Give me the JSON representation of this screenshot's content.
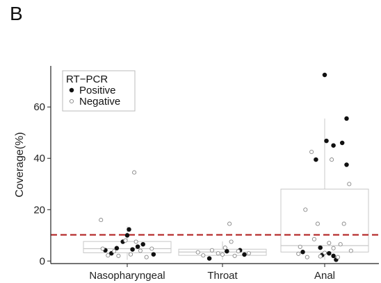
{
  "panel_label": "B",
  "chart_data": {
    "type": "scatter",
    "subtype": "box-jitter",
    "categories": [
      "Nasopharyngeal",
      "Throat",
      "Anal"
    ],
    "ylabel": "Coverage(%)",
    "xlabel": "",
    "ylim": [
      -1,
      76
    ],
    "yticks": [
      0,
      20,
      40,
      60
    ],
    "threshold": {
      "value": 10.2,
      "color": "#b22222",
      "style": "dashed"
    },
    "legend": {
      "title": "RT−PCR",
      "placement": "top-left",
      "entries": [
        {
          "label": "Positive",
          "marker": "filled"
        },
        {
          "label": "Negative",
          "marker": "open"
        }
      ]
    },
    "boxes": [
      {
        "category": "Nasopharyngeal",
        "q1": 3.2,
        "median": 4.8,
        "q3": 7.6,
        "whisker_low": 0.5,
        "whisker_high": 13.5
      },
      {
        "category": "Throat",
        "q1": 2.2,
        "median": 3.5,
        "q3": 4.6,
        "whisker_low": 0.5,
        "whisker_high": 7.6
      },
      {
        "category": "Anal",
        "q1": 3.5,
        "median": 6.0,
        "q3": 28.0,
        "whisker_low": 0.5,
        "whisker_high": 55.5
      }
    ],
    "series": [
      {
        "name": "Positive",
        "points": [
          {
            "category": "Nasopharyngeal",
            "offset": -0.25,
            "y": 4.2
          },
          {
            "category": "Nasopharyngeal",
            "offset": -0.18,
            "y": 3.0
          },
          {
            "category": "Nasopharyngeal",
            "offset": -0.12,
            "y": 5.0
          },
          {
            "category": "Nasopharyngeal",
            "offset": -0.05,
            "y": 7.5
          },
          {
            "category": "Nasopharyngeal",
            "offset": 0.0,
            "y": 10.0
          },
          {
            "category": "Nasopharyngeal",
            "offset": 0.02,
            "y": 12.3
          },
          {
            "category": "Nasopharyngeal",
            "offset": 0.06,
            "y": 4.5
          },
          {
            "category": "Nasopharyngeal",
            "offset": 0.12,
            "y": 5.6
          },
          {
            "category": "Nasopharyngeal",
            "offset": 0.18,
            "y": 6.5
          },
          {
            "category": "Nasopharyngeal",
            "offset": 0.3,
            "y": 2.6
          },
          {
            "category": "Throat",
            "offset": -0.15,
            "y": 1.0
          },
          {
            "category": "Throat",
            "offset": 0.05,
            "y": 3.8
          },
          {
            "category": "Throat",
            "offset": 0.2,
            "y": 4.2
          },
          {
            "category": "Throat",
            "offset": 0.25,
            "y": 2.5
          },
          {
            "category": "Anal",
            "offset": -0.25,
            "y": 3.5
          },
          {
            "category": "Anal",
            "offset": -0.1,
            "y": 39.5
          },
          {
            "category": "Anal",
            "offset": -0.05,
            "y": 5.2
          },
          {
            "category": "Anal",
            "offset": -0.03,
            "y": 2.3
          },
          {
            "category": "Anal",
            "offset": 0.0,
            "y": 72.5
          },
          {
            "category": "Anal",
            "offset": 0.02,
            "y": 46.8
          },
          {
            "category": "Anal",
            "offset": 0.05,
            "y": 3.0
          },
          {
            "category": "Anal",
            "offset": 0.1,
            "y": 45.0
          },
          {
            "category": "Anal",
            "offset": 0.1,
            "y": 2.0
          },
          {
            "category": "Anal",
            "offset": 0.13,
            "y": 0.5
          },
          {
            "category": "Anal",
            "offset": 0.2,
            "y": 46.0
          },
          {
            "category": "Anal",
            "offset": 0.25,
            "y": 55.5
          },
          {
            "category": "Anal",
            "offset": 0.25,
            "y": 37.5
          }
        ]
      },
      {
        "name": "Negative",
        "points": [
          {
            "category": "Nasopharyngeal",
            "offset": -0.3,
            "y": 16.0
          },
          {
            "category": "Nasopharyngeal",
            "offset": -0.28,
            "y": 4.8
          },
          {
            "category": "Nasopharyngeal",
            "offset": -0.22,
            "y": 2.2
          },
          {
            "category": "Nasopharyngeal",
            "offset": -0.15,
            "y": 3.8
          },
          {
            "category": "Nasopharyngeal",
            "offset": -0.1,
            "y": 2.0
          },
          {
            "category": "Nasopharyngeal",
            "offset": -0.02,
            "y": 8.0
          },
          {
            "category": "Nasopharyngeal",
            "offset": 0.04,
            "y": 2.6
          },
          {
            "category": "Nasopharyngeal",
            "offset": 0.08,
            "y": 34.5
          },
          {
            "category": "Nasopharyngeal",
            "offset": 0.1,
            "y": 7.5
          },
          {
            "category": "Nasopharyngeal",
            "offset": 0.15,
            "y": 4.0
          },
          {
            "category": "Nasopharyngeal",
            "offset": 0.22,
            "y": 1.5
          },
          {
            "category": "Nasopharyngeal",
            "offset": 0.28,
            "y": 4.8
          },
          {
            "category": "Throat",
            "offset": -0.28,
            "y": 3.4
          },
          {
            "category": "Throat",
            "offset": -0.22,
            "y": 2.2
          },
          {
            "category": "Throat",
            "offset": -0.12,
            "y": 4.2
          },
          {
            "category": "Throat",
            "offset": -0.05,
            "y": 3.0
          },
          {
            "category": "Throat",
            "offset": 0.0,
            "y": 2.5
          },
          {
            "category": "Throat",
            "offset": 0.03,
            "y": 5.2
          },
          {
            "category": "Throat",
            "offset": 0.08,
            "y": 14.5
          },
          {
            "category": "Throat",
            "offset": 0.1,
            "y": 7.5
          },
          {
            "category": "Throat",
            "offset": 0.14,
            "y": 2.0
          },
          {
            "category": "Throat",
            "offset": 0.18,
            "y": 3.8
          },
          {
            "category": "Throat",
            "offset": 0.3,
            "y": 3.0
          },
          {
            "category": "Anal",
            "offset": -0.3,
            "y": 2.8
          },
          {
            "category": "Anal",
            "offset": -0.28,
            "y": 5.5
          },
          {
            "category": "Anal",
            "offset": -0.22,
            "y": 20.0
          },
          {
            "category": "Anal",
            "offset": -0.2,
            "y": 1.5
          },
          {
            "category": "Anal",
            "offset": -0.15,
            "y": 42.5
          },
          {
            "category": "Anal",
            "offset": -0.12,
            "y": 8.5
          },
          {
            "category": "Anal",
            "offset": -0.08,
            "y": 14.5
          },
          {
            "category": "Anal",
            "offset": -0.05,
            "y": 1.8
          },
          {
            "category": "Anal",
            "offset": 0.0,
            "y": 3.2
          },
          {
            "category": "Anal",
            "offset": 0.05,
            "y": 7.0
          },
          {
            "category": "Anal",
            "offset": 0.08,
            "y": 39.5
          },
          {
            "category": "Anal",
            "offset": 0.1,
            "y": 5.0
          },
          {
            "category": "Anal",
            "offset": 0.15,
            "y": 1.5
          },
          {
            "category": "Anal",
            "offset": 0.18,
            "y": 6.5
          },
          {
            "category": "Anal",
            "offset": 0.22,
            "y": 14.5
          },
          {
            "category": "Anal",
            "offset": 0.28,
            "y": 30.0
          },
          {
            "category": "Anal",
            "offset": 0.3,
            "y": 4.0
          }
        ]
      }
    ]
  }
}
